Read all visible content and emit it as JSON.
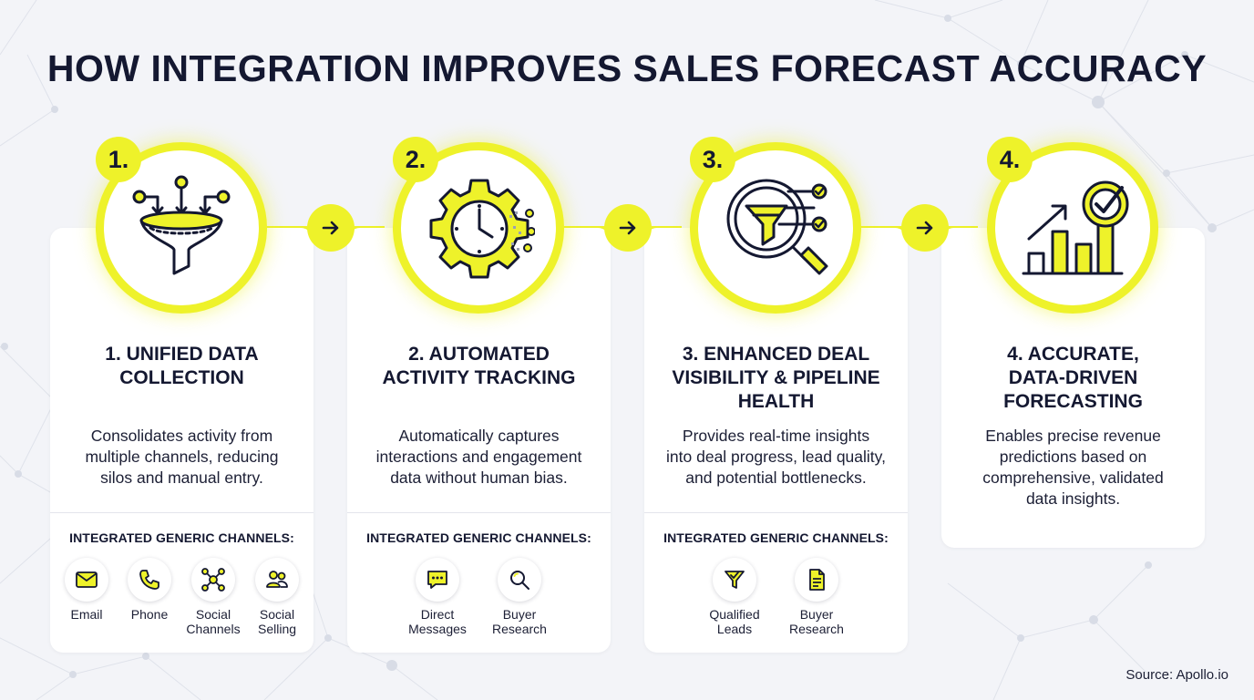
{
  "title": "HOW INTEGRATION IMPROVES SALES FORECAST ACCURACY",
  "accent_color": "#eef22a",
  "channels_heading": "INTEGRATED GENERIC CHANNELS:",
  "steps": [
    {
      "number": "1.",
      "icon": "funnel-merge-icon",
      "title_lines": [
        "1. UNIFIED DATA",
        "COLLECTION"
      ],
      "desc_lines": [
        "Consolidates activity from",
        "multiple channels, reducing",
        "silos and manual entry."
      ],
      "channels": [
        {
          "icon": "envelope-icon",
          "label_lines": [
            "Email"
          ]
        },
        {
          "icon": "phone-icon",
          "label_lines": [
            "Phone"
          ]
        },
        {
          "icon": "network-icon",
          "label_lines": [
            "Social",
            "Channels"
          ]
        },
        {
          "icon": "people-icon",
          "label_lines": [
            "Social",
            "Selling"
          ]
        }
      ]
    },
    {
      "number": "2.",
      "icon": "gear-clock-icon",
      "title_lines": [
        "2. AUTOMATED",
        "ACTIVITY TRACKING"
      ],
      "desc_lines": [
        "Automatically captures",
        "interactions and engagement",
        "data without human bias."
      ],
      "channels": [
        {
          "icon": "chat-bubble-icon",
          "label_lines": [
            "Direct",
            "Messages"
          ]
        },
        {
          "icon": "magnifier-icon",
          "label_lines": [
            "Buyer",
            "Research"
          ]
        }
      ]
    },
    {
      "number": "3.",
      "icon": "magnifier-funnel-icon",
      "title_lines": [
        "3. ENHANCED DEAL",
        "VISIBILITY & PIPELINE",
        "HEALTH"
      ],
      "desc_lines": [
        "Provides real-time insights",
        "into deal progress, lead quality,",
        "and potential bottlenecks."
      ],
      "channels": [
        {
          "icon": "funnel-check-icon",
          "label_lines": [
            "Qualified",
            "Leads"
          ]
        },
        {
          "icon": "document-icon",
          "label_lines": [
            "Buyer",
            "Research"
          ]
        }
      ]
    },
    {
      "number": "4.",
      "icon": "bar-chart-target-icon",
      "title_lines": [
        "4. ACCURATE,",
        "DATA-DRIVEN",
        "FORECASTING"
      ],
      "desc_lines": [
        "Enables precise revenue",
        "predictions based on",
        "comprehensive, validated",
        "data insights."
      ],
      "channels": []
    }
  ],
  "source": "Source: Apollo.io"
}
